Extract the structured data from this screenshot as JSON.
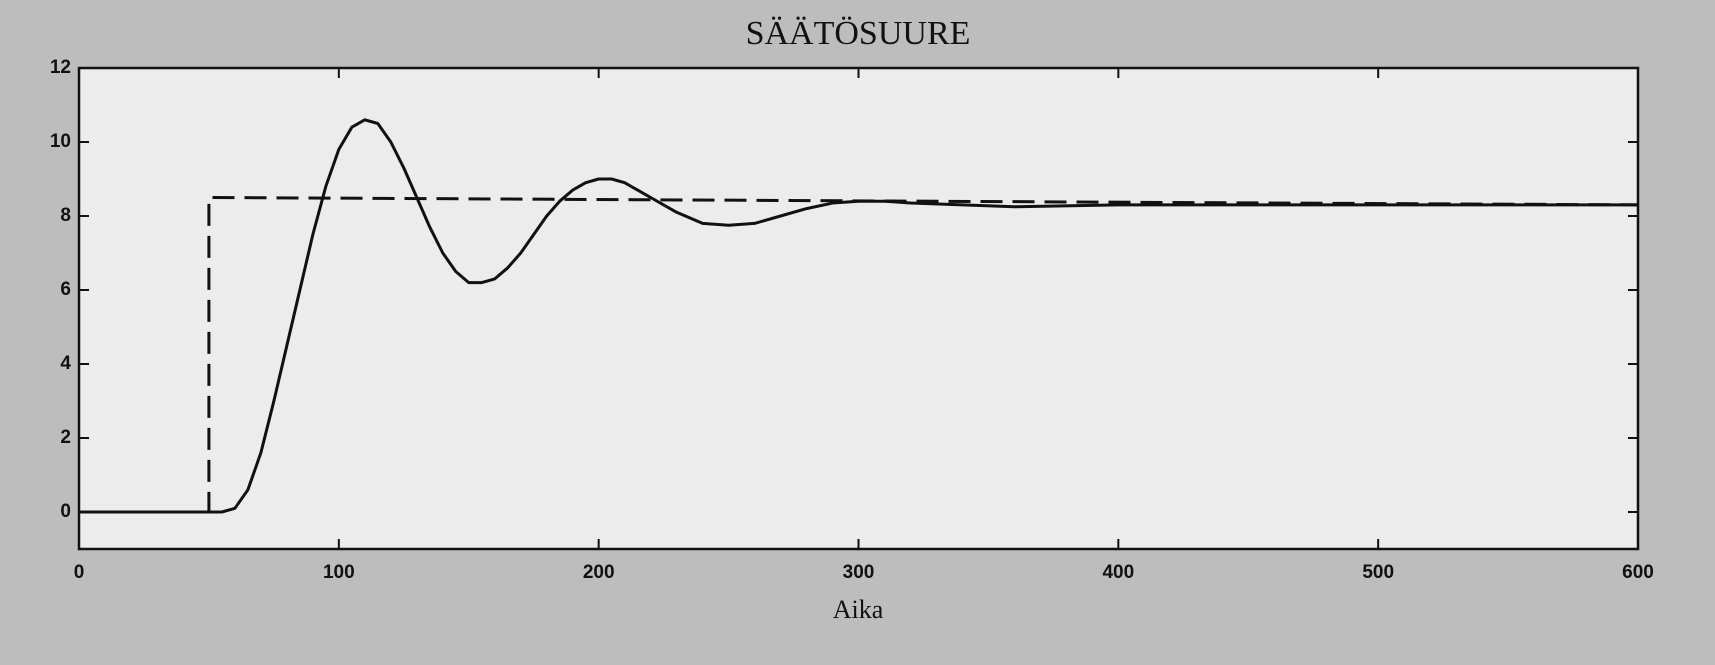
{
  "chart_data": {
    "type": "line",
    "title": "SÄÄTÖSUURE",
    "x_label": "Aika",
    "xlim": [
      0,
      600
    ],
    "ylim": [
      -1,
      12
    ],
    "xticks": [
      0,
      100,
      200,
      300,
      400,
      500,
      600
    ],
    "yticks": [
      0,
      2,
      4,
      6,
      8,
      10,
      12
    ],
    "series": [
      {
        "color": "#111111",
        "style": "dashed",
        "x": [
          0,
          50,
          50,
          600
        ],
        "values": [
          0,
          0,
          8.5,
          8.3
        ]
      },
      {
        "color": "#111111",
        "style": "solid",
        "x": [
          0,
          55,
          60,
          65,
          70,
          75,
          80,
          85,
          90,
          95,
          100,
          105,
          110,
          115,
          120,
          125,
          130,
          135,
          140,
          145,
          150,
          155,
          160,
          165,
          170,
          175,
          180,
          185,
          190,
          195,
          200,
          205,
          210,
          215,
          220,
          230,
          240,
          250,
          260,
          270,
          280,
          290,
          300,
          310,
          320,
          340,
          360,
          400,
          450,
          500,
          600
        ],
        "values": [
          0,
          0,
          0.1,
          0.6,
          1.6,
          3.0,
          4.5,
          6.0,
          7.5,
          8.8,
          9.8,
          10.4,
          10.6,
          10.5,
          10.0,
          9.3,
          8.5,
          7.7,
          7.0,
          6.5,
          6.2,
          6.2,
          6.3,
          6.6,
          7.0,
          7.5,
          8.0,
          8.4,
          8.7,
          8.9,
          9.0,
          9.0,
          8.9,
          8.7,
          8.5,
          8.1,
          7.8,
          7.75,
          7.8,
          8.0,
          8.2,
          8.35,
          8.4,
          8.4,
          8.35,
          8.3,
          8.25,
          8.3,
          8.3,
          8.3,
          8.3
        ]
      }
    ]
  }
}
